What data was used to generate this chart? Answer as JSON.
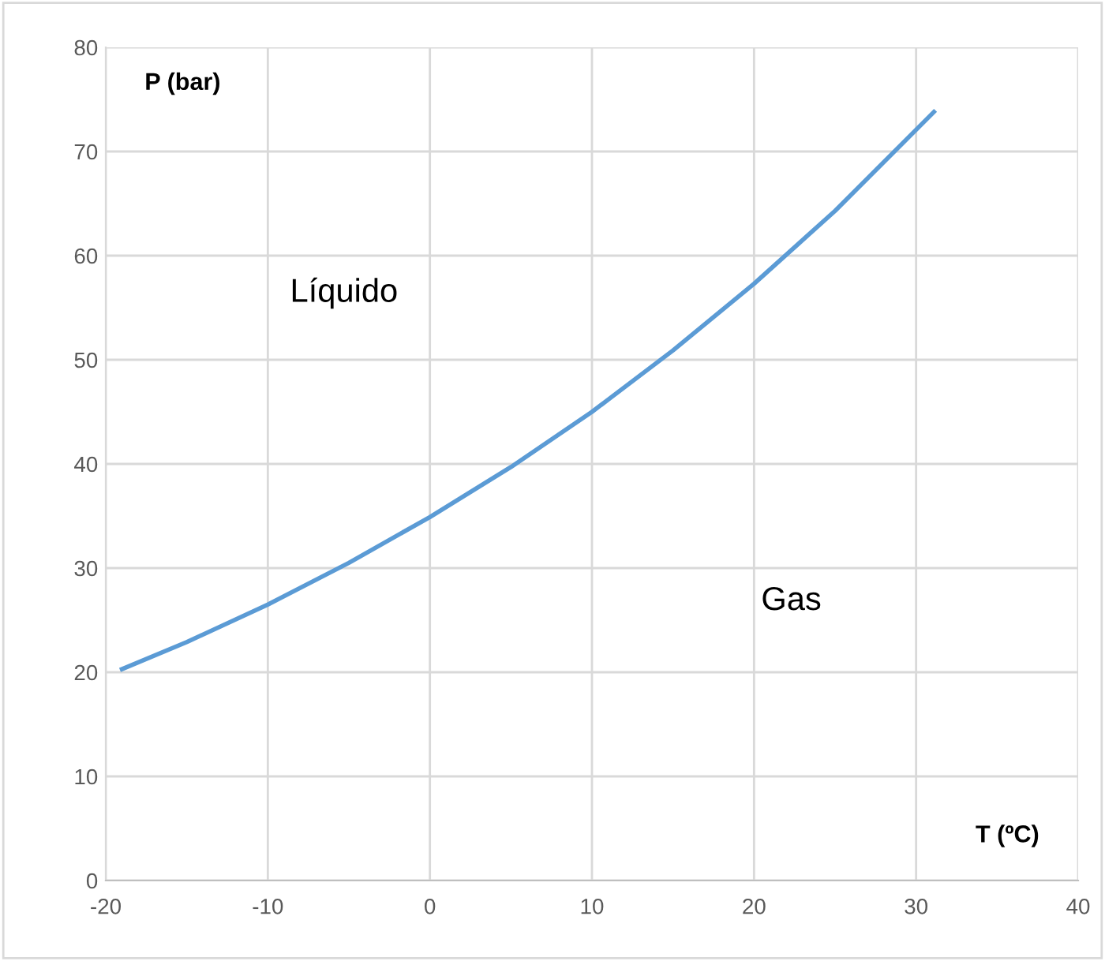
{
  "chart_data": {
    "type": "line",
    "xlabel": "T (ºC)",
    "ylabel": "P (bar)",
    "x": [
      -19,
      -15,
      -10,
      -5,
      0,
      5,
      10,
      15,
      20,
      25,
      31.1
    ],
    "series": [
      {
        "color": "#5b9bd5",
        "values": [
          20.3,
          22.9,
          26.5,
          30.5,
          34.9,
          39.7,
          45.0,
          50.9,
          57.3,
          64.3,
          73.8
        ]
      }
    ],
    "xlim": [
      -20,
      40
    ],
    "xticks": [
      -20,
      -10,
      0,
      10,
      20,
      30,
      40
    ],
    "ylim": [
      0,
      80
    ],
    "yticks": [
      0,
      10,
      20,
      30,
      40,
      50,
      60,
      70,
      80
    ],
    "grid": true,
    "marker": "none",
    "line_style": "solid",
    "annotations": [
      "Líquido",
      "Gas"
    ]
  }
}
